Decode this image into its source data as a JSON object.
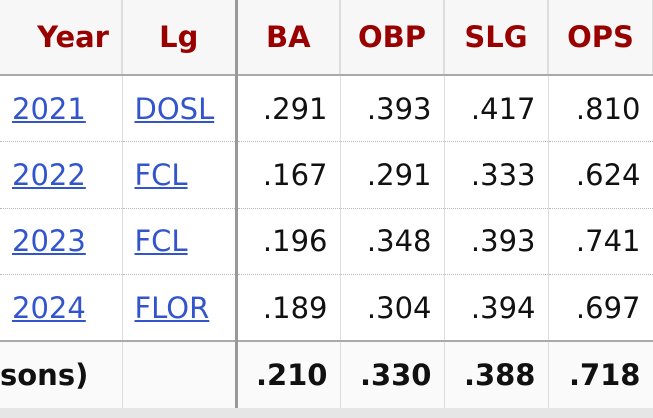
{
  "table": {
    "headers": [
      "Year",
      "Lg",
      "BA",
      "OBP",
      "SLG",
      "OPS"
    ],
    "rows": [
      [
        "2021",
        "DOSL",
        ".291",
        ".393",
        ".417",
        ".810"
      ],
      [
        "2022",
        "FCL",
        ".167",
        ".291",
        ".333",
        ".624"
      ],
      [
        "2023",
        "FCL",
        ".196",
        ".348",
        ".393",
        ".741"
      ],
      [
        "2024",
        "FLOR",
        ".189",
        ".304",
        ".394",
        ".697"
      ]
    ],
    "footer": {
      "label": "sons)",
      "values": [
        ".210",
        ".330",
        ".388",
        ".718"
      ]
    }
  }
}
